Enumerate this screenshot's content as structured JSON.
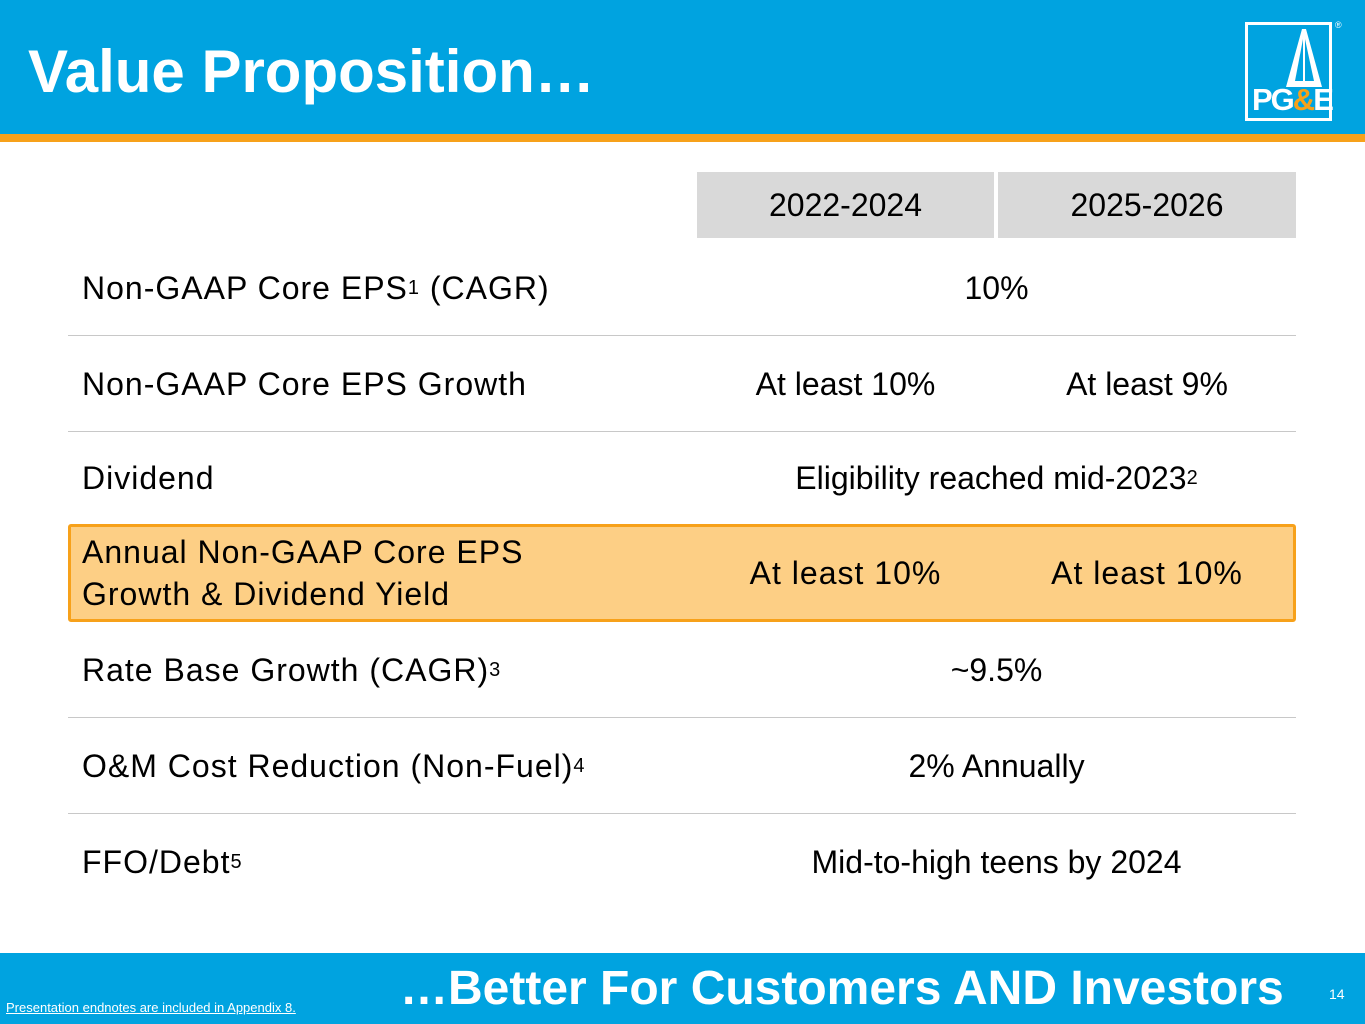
{
  "header": {
    "title": "Value Proposition…",
    "logo_text_a": "PG",
    "logo_text_amp": "&",
    "logo_text_b": "E",
    "registered": "®"
  },
  "table": {
    "columns": [
      "2022-2024",
      "2025-2026"
    ],
    "rows": [
      {
        "label": "Non-GAAP Core EPS",
        "label_sup": "1",
        "label_suffix": " (CAGR)",
        "value": "10%"
      },
      {
        "label": "Non-GAAP Core EPS Growth",
        "value_1": "At least 10%",
        "value_2": "At least 9%"
      },
      {
        "label": "Dividend",
        "value": "Eligibility reached mid-2023",
        "value_sup": "2"
      },
      {
        "label_line1": "Annual Non-GAAP Core EPS",
        "label_line2": "Growth & Dividend Yield",
        "value_1": "At least 10%",
        "value_2": "At least 10%"
      },
      {
        "label": "Rate Base Growth (CAGR)",
        "label_sup": "3",
        "value": "~9.5%"
      },
      {
        "label": "O&M Cost Reduction (Non-Fuel)",
        "label_sup": "4",
        "value": "2% Annually"
      },
      {
        "label": "FFO/Debt",
        "label_sup": "5",
        "value": "Mid-to-high teens by 2024"
      }
    ]
  },
  "footer": {
    "tagline": "…Better For Customers AND Investors",
    "page_number": "14",
    "endnote_link": "Presentation endnotes are included in Appendix 8."
  },
  "colors": {
    "brand_blue": "#00a3e0",
    "brand_orange": "#f7a11a",
    "highlight_fill": "#fdcf85",
    "header_cell": "#d9d9d9"
  }
}
